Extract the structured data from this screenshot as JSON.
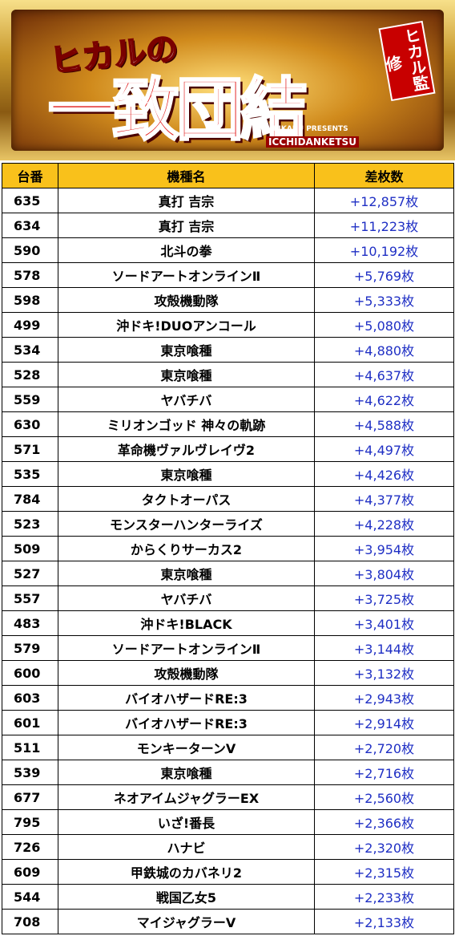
{
  "header": {
    "title_small": "ヒカルの",
    "title_main": "一致団結",
    "badge": "ヒカル監修",
    "presents": "HIKARU PRESENTS",
    "romaji": "ICCHIDANKETSU"
  },
  "table": {
    "columns": [
      "台番",
      "機種名",
      "差枚数"
    ],
    "rows": [
      [
        "635",
        "真打 吉宗",
        "+12,857枚"
      ],
      [
        "634",
        "真打 吉宗",
        "+11,223枚"
      ],
      [
        "590",
        "北斗の拳",
        "+10,192枚"
      ],
      [
        "578",
        "ソードアートオンラインⅡ",
        "+5,769枚"
      ],
      [
        "598",
        "攻殻機動隊",
        "+5,333枚"
      ],
      [
        "499",
        "沖ドキ!DUOアンコール",
        "+5,080枚"
      ],
      [
        "534",
        "東京喰種",
        "+4,880枚"
      ],
      [
        "528",
        "東京喰種",
        "+4,637枚"
      ],
      [
        "559",
        "ヤバチバ",
        "+4,622枚"
      ],
      [
        "630",
        "ミリオンゴッド 神々の軌跡",
        "+4,588枚"
      ],
      [
        "571",
        "革命機ヴァルヴレイヴ2",
        "+4,497枚"
      ],
      [
        "535",
        "東京喰種",
        "+4,426枚"
      ],
      [
        "784",
        "タクトオーパス",
        "+4,377枚"
      ],
      [
        "523",
        "モンスターハンターライズ",
        "+4,228枚"
      ],
      [
        "509",
        "からくりサーカス2",
        "+3,954枚"
      ],
      [
        "527",
        "東京喰種",
        "+3,804枚"
      ],
      [
        "557",
        "ヤバチバ",
        "+3,725枚"
      ],
      [
        "483",
        "沖ドキ!BLACK",
        "+3,401枚"
      ],
      [
        "579",
        "ソードアートオンラインⅡ",
        "+3,144枚"
      ],
      [
        "600",
        "攻殻機動隊",
        "+3,132枚"
      ],
      [
        "603",
        "バイオハザードRE:3",
        "+2,943枚"
      ],
      [
        "601",
        "バイオハザードRE:3",
        "+2,914枚"
      ],
      [
        "511",
        "モンキーターンV",
        "+2,720枚"
      ],
      [
        "539",
        "東京喰種",
        "+2,716枚"
      ],
      [
        "677",
        "ネオアイムジャグラーEX",
        "+2,560枚"
      ],
      [
        "795",
        "いざ!番長",
        "+2,366枚"
      ],
      [
        "726",
        "ハナビ",
        "+2,320枚"
      ],
      [
        "609",
        "甲鉄城のカバネリ2",
        "+2,315枚"
      ],
      [
        "544",
        "戦国乙女5",
        "+2,233枚"
      ],
      [
        "708",
        "マイジャグラーV",
        "+2,133枚"
      ]
    ]
  }
}
